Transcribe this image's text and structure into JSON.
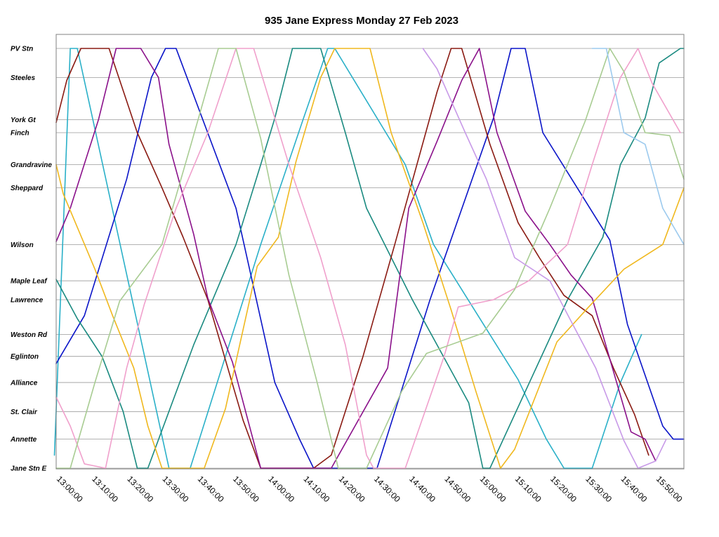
{
  "chart_data": {
    "type": "line",
    "title": "935 Jane Express Monday 27 Feb 2023",
    "xlabel": "",
    "ylabel": "",
    "grid": true,
    "xlim": [
      "13:00:00",
      "15:58:00"
    ],
    "x_ticks": [
      "13:00:00",
      "13:10:00",
      "13:20:00",
      "13:30:00",
      "13:40:00",
      "13:50:00",
      "14:00:00",
      "14:10:00",
      "14:20:00",
      "14:30:00",
      "14:40:00",
      "14:50:00",
      "15:00:00",
      "15:10:00",
      "15:20:00",
      "15:30:00",
      "15:40:00",
      "15:50:00"
    ],
    "stops": [
      {
        "name": "PV Stn",
        "km": 0
      },
      {
        "name": "Steeles",
        "km": 1.0
      },
      {
        "name": "York Gt",
        "km": 2.45
      },
      {
        "name": "Finch",
        "km": 2.9
      },
      {
        "name": "Grandravine",
        "km": 4.0
      },
      {
        "name": "Sheppard",
        "km": 4.8
      },
      {
        "name": "Wilson",
        "km": 6.75
      },
      {
        "name": "Maple Leaf",
        "km": 8.0
      },
      {
        "name": "Lawrence",
        "km": 8.65
      },
      {
        "name": "Weston Rd",
        "km": 9.85
      },
      {
        "name": "Eglinton",
        "km": 10.6
      },
      {
        "name": "Alliance",
        "km": 11.5
      },
      {
        "name": "St. Clair",
        "km": 12.5
      },
      {
        "name": "Annette",
        "km": 13.45
      },
      {
        "name": "Jane Stn E",
        "km": 14.45
      }
    ],
    "series": [
      {
        "color": "#2ab0c8",
        "points": [
          [
            "12:59:30",
            14.0
          ],
          [
            "13:04:00",
            0
          ],
          [
            "13:06:00",
            0
          ],
          [
            "13:32:00",
            14.45
          ],
          [
            "13:38:00",
            14.45
          ],
          [
            "13:58:00",
            6.75
          ],
          [
            "14:10:00",
            2.45
          ],
          [
            "14:17:00",
            0
          ],
          [
            "14:19:00",
            0
          ],
          [
            "14:39:00",
            4.0
          ],
          [
            "14:47:00",
            6.75
          ],
          [
            "15:11:00",
            11.4
          ],
          [
            "15:19:00",
            13.45
          ],
          [
            "15:24:00",
            14.45
          ],
          [
            "15:32:00",
            14.45
          ],
          [
            "15:40:00",
            11.5
          ],
          [
            "15:46:00",
            9.85
          ]
        ]
      },
      {
        "color": "#0a14c8",
        "points": [
          [
            "13:00:00",
            10.85
          ],
          [
            "13:08:00",
            9.2
          ],
          [
            "13:20:00",
            4.5
          ],
          [
            "13:27:00",
            1.0
          ],
          [
            "13:31:00",
            0
          ],
          [
            "13:34:00",
            0
          ],
          [
            "13:51:00",
            5.5
          ],
          [
            "14:02:00",
            11.5
          ],
          [
            "14:09:00",
            13.45
          ],
          [
            "14:13:00",
            14.45
          ],
          [
            "14:31:00",
            14.45
          ],
          [
            "14:46:00",
            8.65
          ],
          [
            "15:04:00",
            2.4
          ],
          [
            "15:09:00",
            0
          ],
          [
            "15:13:00",
            0
          ],
          [
            "15:18:00",
            2.9
          ],
          [
            "15:37:00",
            6.6
          ],
          [
            "15:42:00",
            9.5
          ],
          [
            "15:52:00",
            13.0
          ],
          [
            "15:55:00",
            13.45
          ],
          [
            "15:58:00",
            13.45
          ]
        ]
      },
      {
        "color": "#1a8a80",
        "points": [
          [
            "13:00:00",
            7.95
          ],
          [
            "13:06:00",
            9.3
          ],
          [
            "13:13:00",
            10.6
          ],
          [
            "13:19:00",
            12.5
          ],
          [
            "13:23:00",
            14.45
          ],
          [
            "13:26:00",
            14.45
          ],
          [
            "13:39:00",
            10.2
          ],
          [
            "13:51:00",
            6.75
          ],
          [
            "13:58:00",
            4.0
          ],
          [
            "14:02:00",
            2.4
          ],
          [
            "14:07:00",
            0
          ],
          [
            "14:15:00",
            0
          ],
          [
            "14:22:00",
            2.9
          ],
          [
            "14:28:00",
            5.5
          ],
          [
            "14:41:00",
            8.65
          ],
          [
            "14:57:00",
            12.2
          ],
          [
            "15:01:00",
            14.45
          ],
          [
            "15:03:00",
            14.45
          ],
          [
            "15:25:00",
            8.65
          ],
          [
            "15:35:00",
            6.5
          ],
          [
            "15:40:00",
            4.0
          ],
          [
            "15:47:00",
            2.4
          ],
          [
            "15:51:00",
            0.5
          ],
          [
            "15:57:00",
            0
          ],
          [
            "15:58:00",
            0
          ]
        ]
      },
      {
        "color": "#8a1a12",
        "points": [
          [
            "13:00:00",
            2.55
          ],
          [
            "13:03:00",
            1.1
          ],
          [
            "13:07:00",
            0
          ],
          [
            "13:15:00",
            0
          ],
          [
            "13:23:00",
            2.9
          ],
          [
            "13:30:00",
            4.8
          ],
          [
            "13:36:00",
            6.5
          ],
          [
            "13:43:00",
            8.65
          ],
          [
            "13:53:00",
            12.8
          ],
          [
            "13:58:00",
            14.45
          ],
          [
            "14:13:00",
            14.45
          ],
          [
            "14:18:00",
            14.0
          ],
          [
            "14:27:00",
            10.6
          ],
          [
            "14:36:00",
            6.75
          ],
          [
            "14:48:00",
            1.5
          ],
          [
            "14:52:00",
            0
          ],
          [
            "14:55:00",
            0
          ],
          [
            "15:03:00",
            3.3
          ],
          [
            "15:11:00",
            6.0
          ],
          [
            "15:17:00",
            7.2
          ],
          [
            "15:24:00",
            8.5
          ],
          [
            "15:32:00",
            9.2
          ],
          [
            "15:38:00",
            11.0
          ],
          [
            "15:44:00",
            12.6
          ],
          [
            "15:48:00",
            14.0
          ]
        ]
      },
      {
        "color": "#8a108a",
        "points": [
          [
            "13:00:00",
            6.65
          ],
          [
            "13:04:00",
            5.5
          ],
          [
            "13:12:00",
            2.45
          ],
          [
            "13:17:00",
            0
          ],
          [
            "13:24:00",
            0
          ],
          [
            "13:29:00",
            1.0
          ],
          [
            "13:32:00",
            3.3
          ],
          [
            "13:39:00",
            6.4
          ],
          [
            "13:43:00",
            8.6
          ],
          [
            "13:50:00",
            10.8
          ],
          [
            "13:58:00",
            14.45
          ],
          [
            "14:18:00",
            14.45
          ],
          [
            "14:34:00",
            11.0
          ],
          [
            "14:40:00",
            5.5
          ],
          [
            "14:48:00",
            3.2
          ],
          [
            "14:55:00",
            1.1
          ],
          [
            "15:00:00",
            0
          ],
          [
            "15:05:00",
            2.9
          ],
          [
            "15:13:00",
            5.6
          ],
          [
            "15:20:00",
            6.75
          ],
          [
            "15:26:00",
            7.8
          ],
          [
            "15:32:00",
            8.6
          ],
          [
            "15:43:00",
            13.2
          ],
          [
            "15:47:00",
            13.45
          ],
          [
            "15:50:00",
            14.2
          ]
        ]
      },
      {
        "color": "#f0b81e",
        "points": [
          [
            "13:00:00",
            4.0
          ],
          [
            "13:02:00",
            5.0
          ],
          [
            "13:11:00",
            7.6
          ],
          [
            "13:16:00",
            9.2
          ],
          [
            "13:22:00",
            11.0
          ],
          [
            "13:26:00",
            13.0
          ],
          [
            "13:30:00",
            14.45
          ],
          [
            "13:42:00",
            14.45
          ],
          [
            "13:48:00",
            12.4
          ],
          [
            "13:57:00",
            7.5
          ],
          [
            "14:03:00",
            6.5
          ],
          [
            "14:08:00",
            3.9
          ],
          [
            "14:15:00",
            1.0
          ],
          [
            "14:19:00",
            0
          ],
          [
            "14:29:00",
            0
          ],
          [
            "14:35:00",
            2.9
          ],
          [
            "14:44:00",
            6.0
          ],
          [
            "14:52:00",
            9.0
          ],
          [
            "14:59:00",
            11.8
          ],
          [
            "15:06:00",
            14.45
          ],
          [
            "15:10:00",
            13.8
          ],
          [
            "15:22:00",
            10.1
          ],
          [
            "15:31:00",
            8.9
          ],
          [
            "15:41:00",
            7.6
          ],
          [
            "15:52:00",
            6.75
          ],
          [
            "15:58:00",
            4.8
          ]
        ]
      },
      {
        "color": "#f0a0cc",
        "points": [
          [
            "13:00:00",
            12.0
          ],
          [
            "13:04:00",
            13.0
          ],
          [
            "13:08:00",
            14.3
          ],
          [
            "13:14:00",
            14.45
          ],
          [
            "13:20:00",
            11.0
          ],
          [
            "13:25:00",
            8.8
          ],
          [
            "13:34:00",
            5.5
          ],
          [
            "13:43:00",
            2.9
          ],
          [
            "13:51:00",
            0
          ],
          [
            "13:56:00",
            0
          ],
          [
            "14:06:00",
            4.0
          ],
          [
            "14:15:00",
            7.2
          ],
          [
            "14:22:00",
            10.2
          ],
          [
            "14:28:00",
            14.0
          ],
          [
            "14:30:00",
            14.45
          ],
          [
            "14:39:00",
            14.45
          ],
          [
            "14:50:00",
            10.6
          ],
          [
            "14:54:00",
            8.9
          ],
          [
            "15:04:00",
            8.65
          ],
          [
            "15:14:00",
            8.0
          ],
          [
            "15:25:00",
            6.75
          ],
          [
            "15:32:00",
            4.0
          ],
          [
            "15:40:00",
            1.0
          ],
          [
            "15:45:00",
            0
          ],
          [
            "15:49:00",
            1.2
          ],
          [
            "15:57:00",
            2.9
          ]
        ]
      },
      {
        "color": "#a8cc92",
        "points": [
          [
            "13:00:00",
            14.45
          ],
          [
            "13:04:00",
            14.45
          ],
          [
            "13:11:00",
            11.5
          ],
          [
            "13:18:00",
            8.7
          ],
          [
            "13:30:00",
            6.75
          ],
          [
            "13:38:00",
            3.4
          ],
          [
            "13:46:00",
            0
          ],
          [
            "13:51:00",
            0
          ],
          [
            "13:58:00",
            3.1
          ],
          [
            "14:06:00",
            7.8
          ],
          [
            "14:14:00",
            11.5
          ],
          [
            "14:20:00",
            14.45
          ],
          [
            "14:28:00",
            14.45
          ],
          [
            "14:38:00",
            11.8
          ],
          [
            "14:45:00",
            10.5
          ],
          [
            "15:01:00",
            9.8
          ],
          [
            "15:10:00",
            8.3
          ],
          [
            "15:20:00",
            5.5
          ],
          [
            "15:30:00",
            2.5
          ],
          [
            "15:37:00",
            0
          ],
          [
            "15:41:00",
            0.8
          ],
          [
            "15:47:00",
            2.9
          ],
          [
            "15:54:00",
            3.0
          ],
          [
            "15:58:00",
            4.5
          ]
        ]
      },
      {
        "color": "#c89ae8",
        "points": [
          [
            "14:44:00",
            0
          ],
          [
            "14:48:00",
            0.7
          ],
          [
            "14:56:00",
            2.9
          ],
          [
            "15:02:00",
            4.5
          ],
          [
            "15:10:00",
            7.2
          ],
          [
            "15:20:00",
            8.0
          ],
          [
            "15:33:00",
            11.0
          ],
          [
            "15:41:00",
            13.5
          ],
          [
            "15:45:00",
            14.45
          ],
          [
            "15:50:00",
            14.2
          ],
          [
            "15:53:00",
            13.45
          ]
        ]
      },
      {
        "color": "#9ccaee",
        "points": [
          [
            "15:32:00",
            0
          ],
          [
            "15:36:00",
            0
          ],
          [
            "15:41:00",
            2.9
          ],
          [
            "15:47:00",
            3.3
          ],
          [
            "15:52:00",
            5.5
          ],
          [
            "15:58:00",
            6.75
          ]
        ]
      }
    ]
  }
}
